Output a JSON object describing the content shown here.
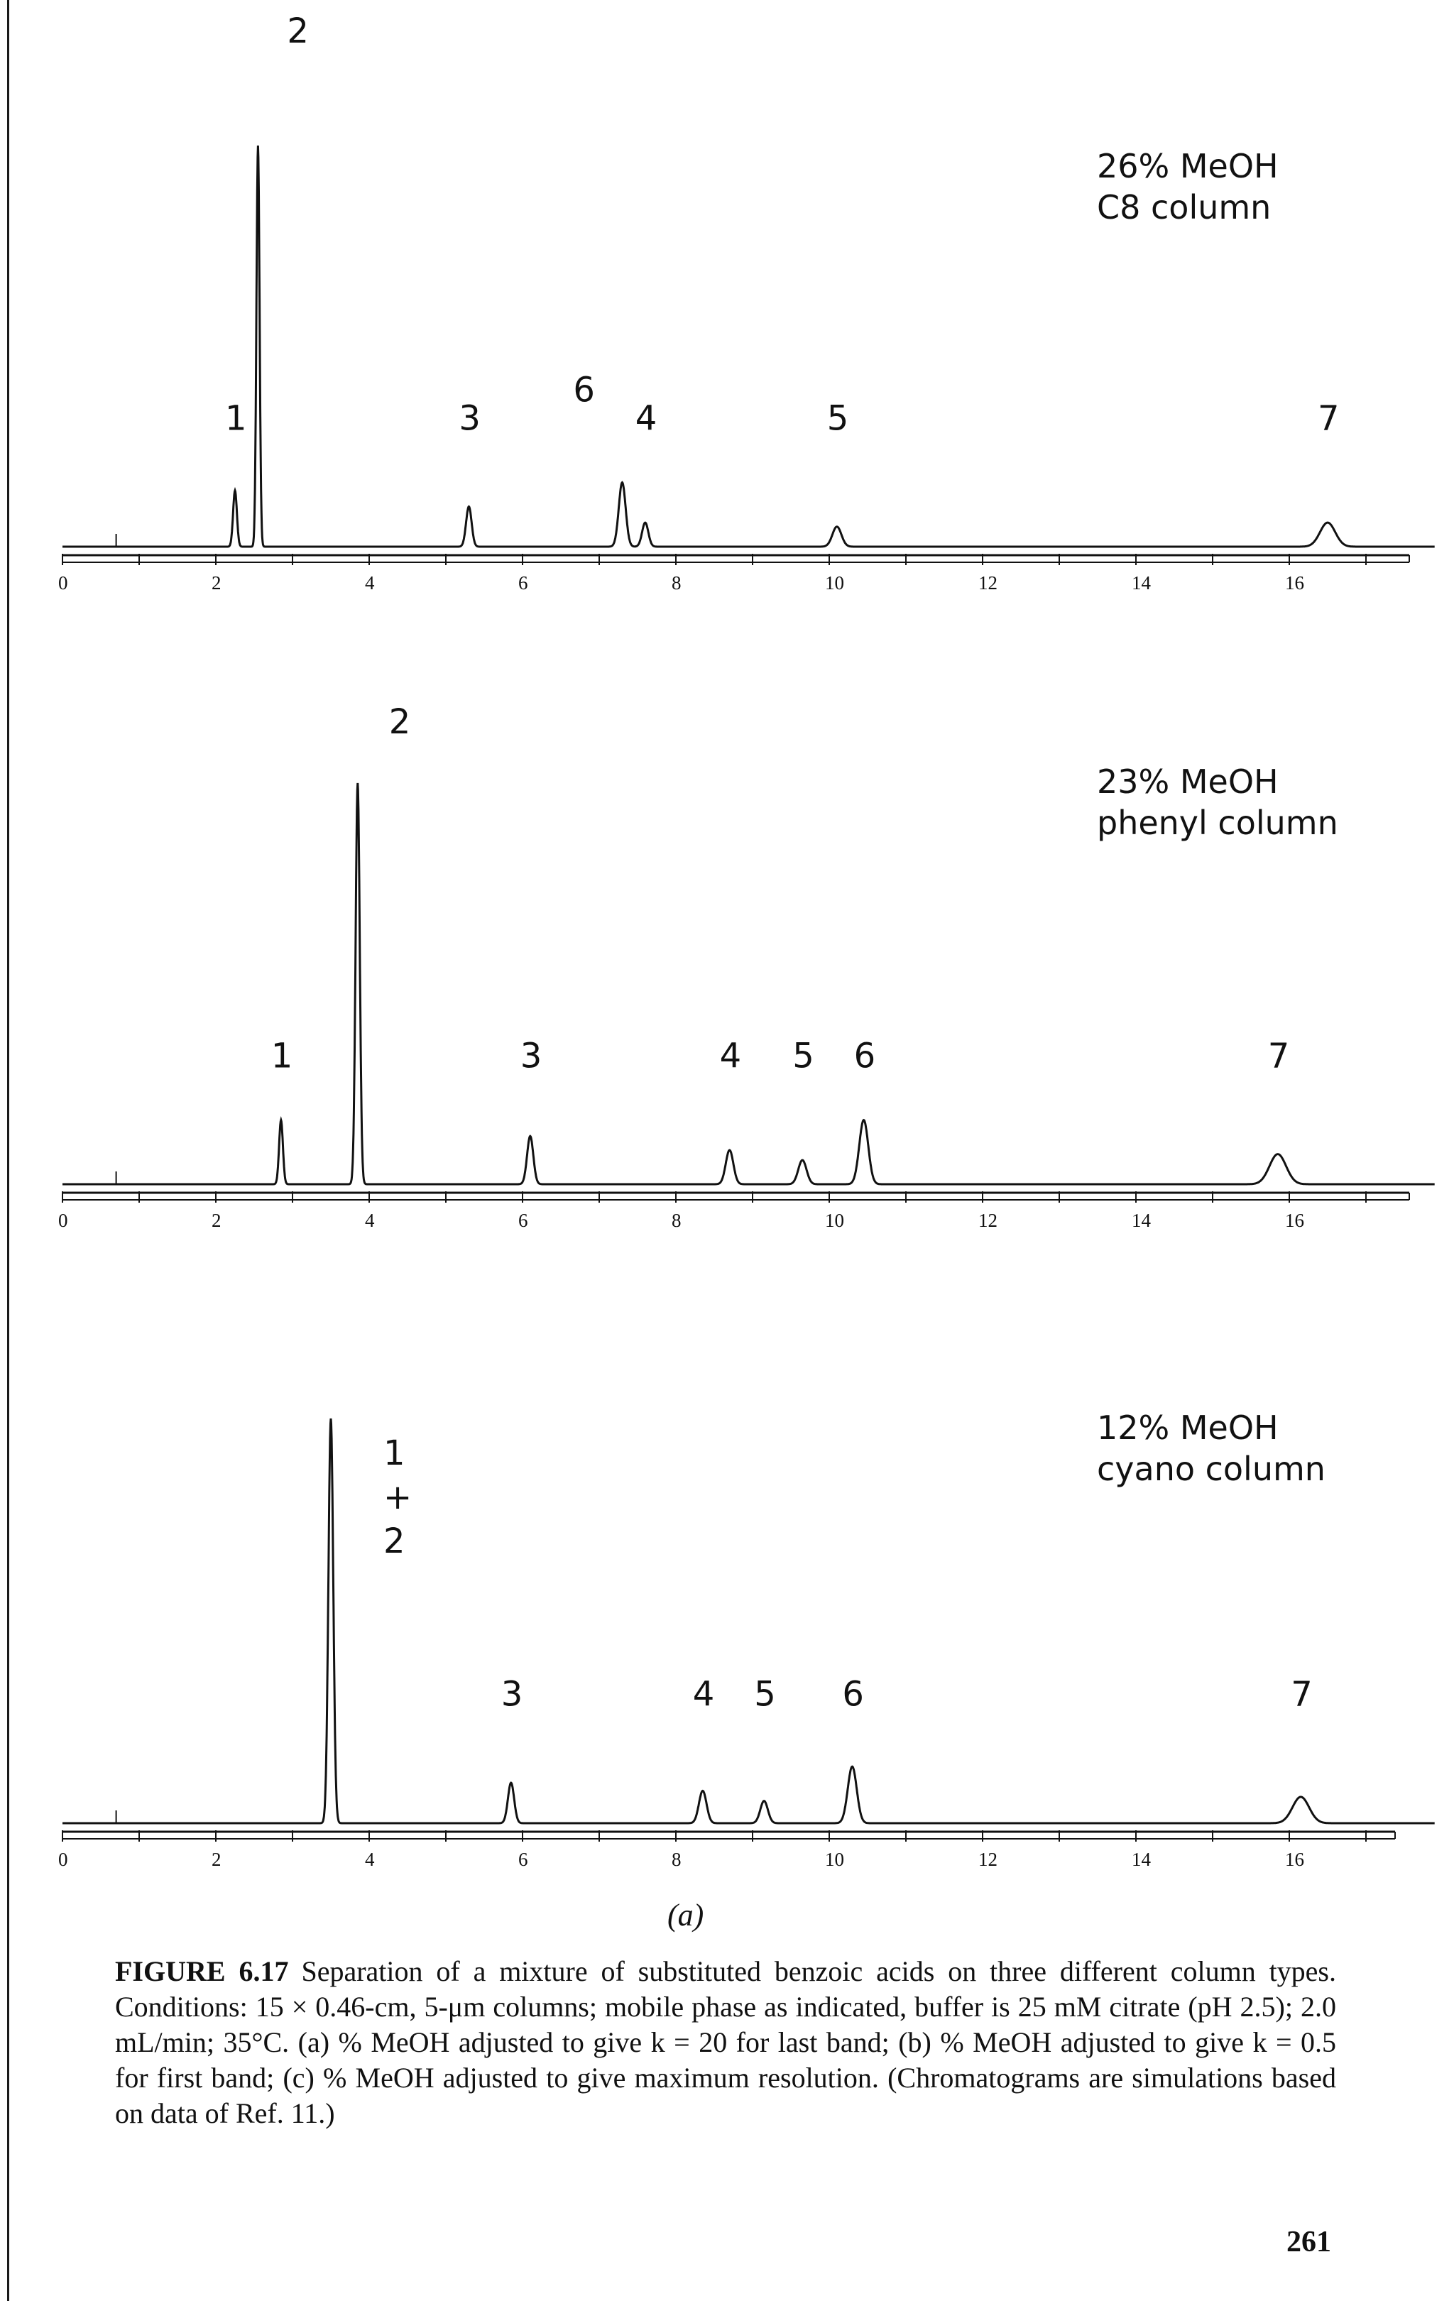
{
  "chart_data": [
    {
      "type": "line",
      "xlim": [
        0,
        18
      ],
      "xticks": [
        0,
        2,
        4,
        6,
        8,
        10,
        12,
        14,
        16
      ],
      "conditions": [
        "26% MeOH",
        "C8 column"
      ],
      "peaks": [
        {
          "label": "1",
          "t": 2.25,
          "height": 0.14,
          "width": 0.055
        },
        {
          "label": "2",
          "t": 2.55,
          "height": 1.0,
          "width": 0.045
        },
        {
          "label": "3",
          "t": 5.3,
          "height": 0.1,
          "width": 0.08
        },
        {
          "label": "6",
          "t": 7.3,
          "height": 0.16,
          "width": 0.1
        },
        {
          "label": "4",
          "t": 7.6,
          "height": 0.06,
          "width": 0.09
        },
        {
          "label": "5",
          "t": 10.1,
          "height": 0.05,
          "width": 0.13
        },
        {
          "label": "7",
          "t": 16.5,
          "height": 0.06,
          "width": 0.22
        }
      ]
    },
    {
      "type": "line",
      "xlim": [
        0,
        18
      ],
      "xticks": [
        0,
        2,
        4,
        6,
        8,
        10,
        12,
        14,
        16
      ],
      "conditions": [
        "23% MeOH",
        "phenyl column"
      ],
      "peaks": [
        {
          "label": "1",
          "t": 2.85,
          "height": 0.16,
          "width": 0.055
        },
        {
          "label": "2",
          "t": 3.85,
          "height": 1.0,
          "width": 0.06
        },
        {
          "label": "3",
          "t": 6.1,
          "height": 0.12,
          "width": 0.09
        },
        {
          "label": "4",
          "t": 8.7,
          "height": 0.085,
          "width": 0.11
        },
        {
          "label": "5",
          "t": 9.65,
          "height": 0.06,
          "width": 0.12
        },
        {
          "label": "6",
          "t": 10.45,
          "height": 0.16,
          "width": 0.13
        },
        {
          "label": "7",
          "t": 15.85,
          "height": 0.075,
          "width": 0.24
        }
      ]
    },
    {
      "type": "line",
      "xlim": [
        0,
        18
      ],
      "xticks": [
        0,
        2,
        4,
        6,
        8,
        10,
        12,
        14,
        16
      ],
      "conditions": [
        "12% MeOH",
        "cyano column"
      ],
      "peaks": [
        {
          "label": "1 + 2",
          "t": 3.5,
          "height": 1.0,
          "width": 0.07
        },
        {
          "label": "3",
          "t": 5.85,
          "height": 0.1,
          "width": 0.09
        },
        {
          "label": "4",
          "t": 8.35,
          "height": 0.08,
          "width": 0.11
        },
        {
          "label": "5",
          "t": 9.15,
          "height": 0.055,
          "width": 0.11
        },
        {
          "label": "6",
          "t": 10.3,
          "height": 0.14,
          "width": 0.13
        },
        {
          "label": "7",
          "t": 16.15,
          "height": 0.065,
          "width": 0.24
        }
      ]
    }
  ],
  "panel_tag": "(a)",
  "caption": {
    "figure_number": "FIGURE 6.17",
    "text": "Separation of a mixture of substituted benzoic acids on three different column types. Conditions: 15 × 0.46-cm, 5-μm columns; mobile phase as indicated, buffer is 25 mM citrate (pH 2.5); 2.0 mL/min; 35°C. (a) % MeOH adjusted to give k = 20 for last band; (b) % MeOH adjusted to give k = 0.5 for first band; (c) % MeOH adjusted to give maximum resolution. (Chromatograms are simulations based on data of Ref. 11.)"
  },
  "page_number": "261"
}
